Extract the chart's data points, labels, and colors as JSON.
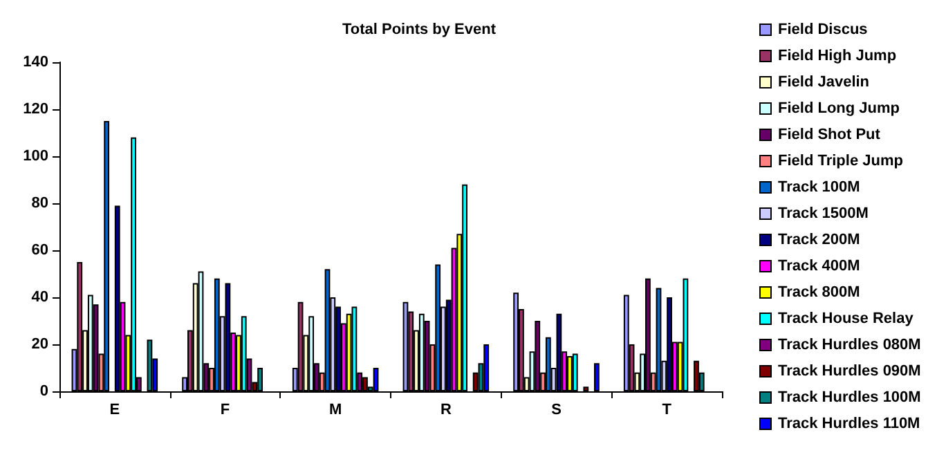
{
  "chart_data": {
    "type": "bar",
    "title": "Total Points by Event",
    "categories": [
      "E",
      "F",
      "M",
      "R",
      "S",
      "T"
    ],
    "ylim": [
      0,
      140
    ],
    "yticks": [
      0,
      20,
      40,
      60,
      80,
      100,
      120,
      140
    ],
    "grid": false,
    "legend": "right",
    "series": [
      {
        "name": "Field Discus",
        "color": "#9999ff",
        "values": [
          18,
          6,
          10,
          38,
          42,
          41
        ]
      },
      {
        "name": "Field High Jump",
        "color": "#993366",
        "values": [
          55,
          26,
          38,
          34,
          35,
          20
        ]
      },
      {
        "name": "Field Javelin",
        "color": "#ffffcc",
        "values": [
          26,
          46,
          24,
          26,
          6,
          8
        ]
      },
      {
        "name": "Field Long Jump",
        "color": "#ccffff",
        "values": [
          41,
          51,
          32,
          33,
          17,
          16
        ]
      },
      {
        "name": "Field Shot Put",
        "color": "#660066",
        "values": [
          37,
          12,
          12,
          30,
          30,
          48
        ]
      },
      {
        "name": "Field Triple Jump",
        "color": "#ff8080",
        "values": [
          16,
          10,
          8,
          20,
          8,
          8
        ]
      },
      {
        "name": "Track 100M",
        "color": "#0066cc",
        "values": [
          115,
          48,
          52,
          54,
          23,
          44
        ]
      },
      {
        "name": "Track 1500M",
        "color": "#ccccff",
        "values": [
          null,
          32,
          40,
          36,
          10,
          13
        ]
      },
      {
        "name": "Track 200M",
        "color": "#000080",
        "values": [
          79,
          46,
          36,
          39,
          33,
          40
        ]
      },
      {
        "name": "Track 400M",
        "color": "#ff00ff",
        "values": [
          38,
          25,
          29,
          61,
          17,
          21
        ]
      },
      {
        "name": "Track 800M",
        "color": "#ffff00",
        "values": [
          24,
          24,
          33,
          67,
          15,
          21
        ]
      },
      {
        "name": "Track House Relay",
        "color": "#00ffff",
        "values": [
          108,
          32,
          36,
          88,
          16,
          48
        ]
      },
      {
        "name": "Track Hurdles 080M",
        "color": "#800080",
        "values": [
          6,
          14,
          8,
          null,
          null,
          null
        ]
      },
      {
        "name": "Track Hurdles 090M",
        "color": "#800000",
        "values": [
          null,
          4,
          6,
          8,
          2,
          13
        ]
      },
      {
        "name": "Track Hurdles 100M",
        "color": "#008080",
        "values": [
          22,
          10,
          2,
          12,
          null,
          8
        ]
      },
      {
        "name": "Track Hurdles 110M",
        "color": "#0000ff",
        "values": [
          14,
          null,
          10,
          20,
          12,
          null
        ]
      }
    ]
  }
}
